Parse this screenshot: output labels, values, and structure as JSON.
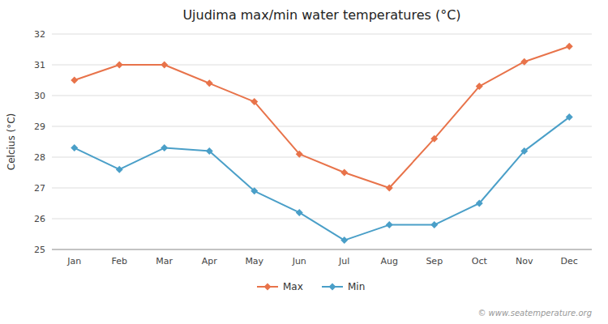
{
  "chart_data": {
    "type": "line",
    "title": "Ujudima max/min water temperatures (°C)",
    "ylabel": "Celcius (°C)",
    "categories": [
      "Jan",
      "Feb",
      "Mar",
      "Apr",
      "May",
      "Jun",
      "Jul",
      "Aug",
      "Sep",
      "Oct",
      "Nov",
      "Dec"
    ],
    "series": [
      {
        "name": "Max",
        "color": "#e8734a",
        "marker": "diamond",
        "values": [
          30.5,
          31.0,
          31.0,
          30.4,
          29.8,
          28.1,
          27.5,
          27.0,
          28.6,
          30.3,
          31.1,
          31.6
        ]
      },
      {
        "name": "Min",
        "color": "#4a9fc8",
        "marker": "diamond",
        "values": [
          28.3,
          27.6,
          28.3,
          28.2,
          26.9,
          26.2,
          25.3,
          25.8,
          25.8,
          26.5,
          28.2,
          29.3
        ]
      }
    ],
    "ylim": [
      25,
      32
    ],
    "yticks": [
      25,
      26,
      27,
      28,
      29,
      30,
      31,
      32
    ],
    "grid": true,
    "legend": "bottom",
    "annotation": "© www.seatemperature.org"
  }
}
